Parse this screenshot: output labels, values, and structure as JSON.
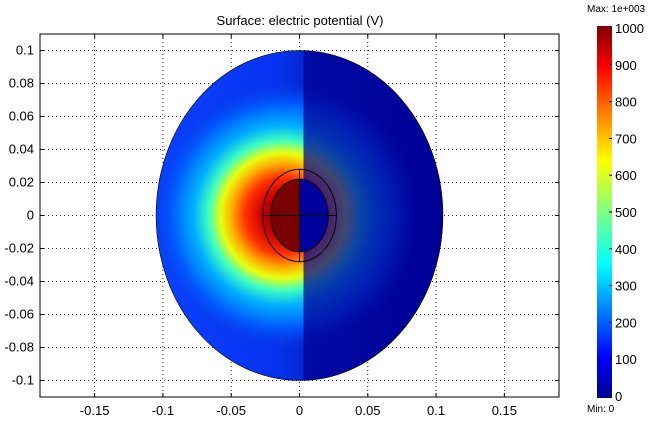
{
  "chart_data": {
    "type": "heatmap",
    "title": "Surface: electric potential (V)",
    "xlabel": "",
    "ylabel": "",
    "xlim": [
      -0.19,
      0.19
    ],
    "ylim": [
      -0.11,
      0.11
    ],
    "grid": true,
    "x_ticks": [
      {
        "value": -0.15,
        "label": "-0.15"
      },
      {
        "value": -0.1,
        "label": "-0.1"
      },
      {
        "value": -0.05,
        "label": "-0.05"
      },
      {
        "value": 0,
        "label": "0"
      },
      {
        "value": 0.05,
        "label": "0.05"
      },
      {
        "value": 0.1,
        "label": "0.1"
      },
      {
        "value": 0.15,
        "label": "0.15"
      }
    ],
    "y_ticks": [
      {
        "value": 0.1,
        "label": "0.1"
      },
      {
        "value": 0.08,
        "label": "0.08"
      },
      {
        "value": 0.06,
        "label": "0.06"
      },
      {
        "value": 0.04,
        "label": "0.04"
      },
      {
        "value": 0.02,
        "label": "0.02"
      },
      {
        "value": 0,
        "label": "0"
      },
      {
        "value": -0.02,
        "label": "-0.02"
      },
      {
        "value": -0.04,
        "label": "-0.04"
      },
      {
        "value": -0.06,
        "label": "-0.06"
      },
      {
        "value": -0.08,
        "label": "-0.08"
      },
      {
        "value": -0.1,
        "label": "-0.1"
      }
    ],
    "domain": {
      "shape": "ellipse",
      "center": [
        0,
        0
      ],
      "radius_x": 0.105,
      "radius_y": 0.1
    },
    "electrode": {
      "shape": "ellipse",
      "center": [
        0,
        0
      ],
      "radius_x": 0.027,
      "radius_y": 0.028,
      "inner_radius_x": 0.021,
      "inner_radius_y": 0.022,
      "high_potential_side": "left",
      "high_potential": 1000,
      "low_potential": 0
    },
    "colorbar": {
      "colormap": "jet",
      "min": 0,
      "max": 1000,
      "ticks": [
        "1000",
        "900",
        "800",
        "700",
        "600",
        "500",
        "400",
        "300",
        "200",
        "100",
        "0"
      ],
      "max_label": "Max: 1e+003",
      "min_label": "Min: 0"
    }
  }
}
